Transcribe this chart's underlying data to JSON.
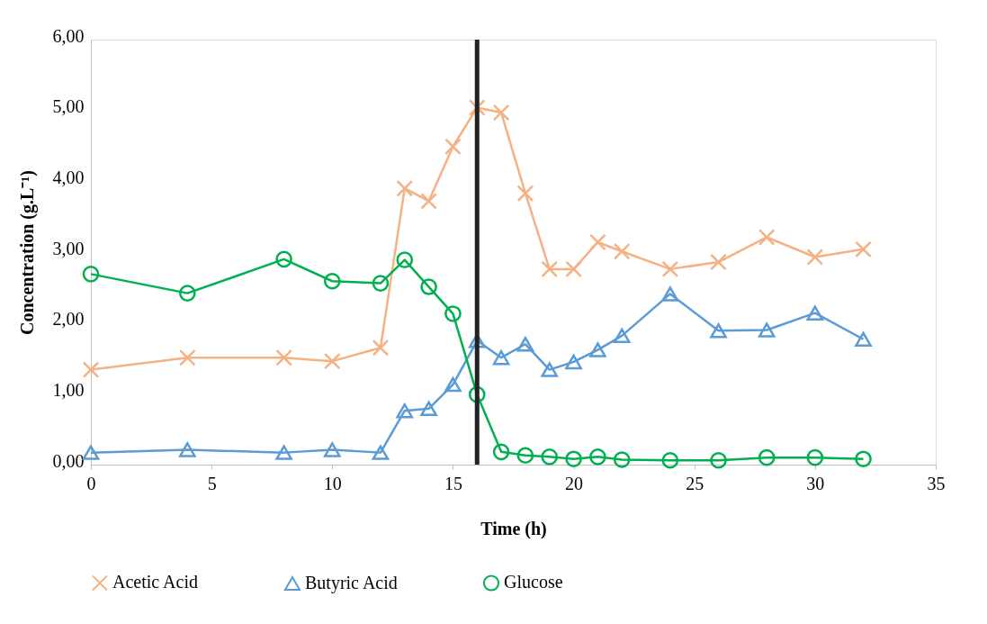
{
  "chart_data": {
    "type": "line",
    "xlabel": "Time (h)",
    "ylabel": "Concentration (g.L⁻¹)",
    "x": [
      0,
      4,
      8,
      10,
      12,
      13,
      14,
      15,
      16,
      17,
      18,
      19,
      20,
      21,
      22,
      24,
      26,
      28,
      30,
      32
    ],
    "series": [
      {
        "name": "Acetic Acid",
        "color": "#f4b183",
        "marker": "cross",
        "values": [
          1.34,
          1.51,
          1.51,
          1.46,
          1.65,
          3.9,
          3.72,
          4.49,
          5.04,
          4.97,
          3.83,
          2.76,
          2.76,
          3.14,
          3.01,
          2.76,
          2.86,
          3.21,
          2.93,
          3.04
        ]
      },
      {
        "name": "Butyric Acid",
        "color": "#5b9bd5",
        "marker": "triangle",
        "values": [
          0.17,
          0.21,
          0.17,
          0.21,
          0.17,
          0.76,
          0.79,
          1.13,
          1.75,
          1.51,
          1.7,
          1.34,
          1.45,
          1.62,
          1.82,
          2.41,
          1.89,
          1.9,
          2.14,
          1.77
        ]
      },
      {
        "name": "Glucose",
        "color": "#00b050",
        "marker": "circle",
        "values": [
          2.69,
          2.42,
          2.9,
          2.59,
          2.56,
          2.89,
          2.51,
          2.13,
          0.99,
          0.18,
          0.13,
          0.11,
          0.08,
          0.11,
          0.07,
          0.06,
          0.06,
          0.1,
          0.1,
          0.08
        ]
      }
    ],
    "xlim": [
      0,
      35
    ],
    "xticks": [
      0,
      5,
      10,
      15,
      20,
      25,
      30,
      35
    ],
    "ylim": [
      0,
      6
    ],
    "yticks": [
      {
        "value": 0,
        "label": "0,00"
      },
      {
        "value": 1,
        "label": "1,00"
      },
      {
        "value": 2,
        "label": "2,00"
      },
      {
        "value": 3,
        "label": "3,00"
      },
      {
        "value": 4,
        "label": "4,00"
      },
      {
        "value": 5,
        "label": "5,00"
      },
      {
        "value": 6,
        "label": "6,00"
      }
    ],
    "ref_lines": [
      {
        "axis": "x",
        "value": 16,
        "color": "#222222"
      }
    ],
    "grid": false,
    "legend": "bottom",
    "line_style": "solid"
  }
}
